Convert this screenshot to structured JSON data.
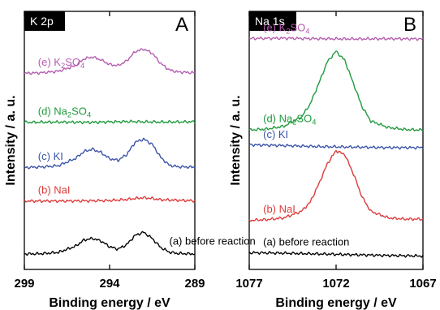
{
  "chart_data": [
    {
      "type": "line",
      "panel_tag": "K 2p",
      "panel_letter": "A",
      "xlabel": "Binding energy / eV",
      "ylabel": "Intensity / a. u.",
      "xlim": [
        299,
        289
      ],
      "x_reversed": true,
      "xticks": [
        299,
        294,
        289
      ],
      "grid": false,
      "series": [
        {
          "label": "(a) before reaction",
          "color": "#000000",
          "label_x": 290.5,
          "x": [
            299,
            298,
            297,
            296,
            295.5,
            295,
            294.5,
            294,
            293.5,
            293,
            292.5,
            292,
            291.5,
            291,
            290.5,
            290,
            289
          ],
          "y": [
            6.0,
            6.1,
            6.6,
            9.0,
            11.4,
            12.0,
            11.0,
            8.8,
            7.9,
            9.6,
            13.2,
            14.4,
            12.0,
            8.5,
            6.7,
            6.2,
            6.0
          ]
        },
        {
          "label": "(b) NaI",
          "color": "#dd3a3a",
          "label_x": 298.2,
          "x": [
            299,
            297,
            295,
            294,
            293.5,
            293,
            292.5,
            292,
            291.5,
            291,
            289
          ],
          "y": [
            26.5,
            26.5,
            26.6,
            26.7,
            26.9,
            27.1,
            27.5,
            27.8,
            27.5,
            27.0,
            26.6
          ]
        },
        {
          "label": "(c) KI",
          "color": "#3a52a8",
          "label_x": 298.2,
          "x": [
            299,
            298,
            297,
            296,
            295.5,
            295,
            294.5,
            294,
            293.5,
            293,
            292.5,
            292,
            291.5,
            291,
            290.5,
            290,
            289
          ],
          "y": [
            39.5,
            39.7,
            40.2,
            43.0,
            45.7,
            46.6,
            45.3,
            42.9,
            42.3,
            44.5,
            49.3,
            50.5,
            48.5,
            43.4,
            40.4,
            39.8,
            39.6
          ]
        },
        {
          "label": "(d) Na₂SO₄",
          "color": "#1f9a3c",
          "label_x": 298.2,
          "x": [
            299,
            297,
            295,
            293,
            291,
            289
          ],
          "y": [
            57.0,
            57.1,
            57.0,
            57.3,
            57.1,
            57.2
          ]
        },
        {
          "label": "(e) K₂SO₄",
          "color": "#b45bb0",
          "label_x": 298.2,
          "x": [
            299,
            298,
            297,
            296,
            295.5,
            295,
            294.5,
            294,
            293.5,
            293,
            292.5,
            292,
            291.5,
            291,
            290.5,
            290,
            289
          ],
          "y": [
            76.0,
            76.2,
            76.8,
            79.0,
            81.6,
            82.3,
            81.2,
            79.4,
            79.0,
            80.8,
            84.4,
            85.4,
            83.8,
            79.8,
            77.3,
            76.5,
            76.2
          ]
        }
      ]
    },
    {
      "type": "line",
      "panel_tag": "Na 1s",
      "panel_letter": "B",
      "xlabel": "Binding energy / eV",
      "ylabel": "Intensity / a. u.",
      "xlim": [
        1077,
        1067
      ],
      "x_reversed": true,
      "xticks": [
        1077,
        1072,
        1067
      ],
      "grid": false,
      "series": [
        {
          "label": "(a) before reaction",
          "color": "#000000",
          "label_x": 1076.2,
          "x": [
            1077,
            1075,
            1073,
            1071,
            1069,
            1067
          ],
          "y": [
            6.5,
            6.3,
            6.0,
            5.7,
            5.4,
            5.2
          ]
        },
        {
          "label": "(b) NaI",
          "color": "#dd3a3a",
          "label_x": 1076.2,
          "x": [
            1077,
            1076,
            1075,
            1074,
            1073.5,
            1073,
            1072.5,
            1072,
            1071.5,
            1071,
            1070.5,
            1070,
            1069,
            1068,
            1067
          ],
          "y": [
            19.0,
            19.3,
            20.0,
            22.5,
            26.0,
            33.0,
            41.0,
            46.0,
            44.5,
            37.0,
            28.0,
            22.5,
            20.0,
            19.5,
            19.5
          ]
        },
        {
          "label": "(c) KI",
          "color": "#3a52a8",
          "label_x": 1076.2,
          "x": [
            1077,
            1075,
            1073,
            1071,
            1069,
            1067
          ],
          "y": [
            48.3,
            48.0,
            47.6,
            47.4,
            47.2,
            47.2
          ]
        },
        {
          "label": "(d) Na₂SO₄",
          "color": "#1f9a3c",
          "label_x": 1076.2,
          "x": [
            1077,
            1076,
            1075,
            1074,
            1073.5,
            1073,
            1072.5,
            1072,
            1071.5,
            1071,
            1070.5,
            1070,
            1069,
            1068,
            1067
          ],
          "y": [
            54.0,
            54.4,
            55.5,
            59.0,
            64.0,
            72.0,
            80.5,
            84.5,
            81.0,
            72.0,
            63.0,
            57.5,
            55.0,
            54.2,
            54.0
          ]
        },
        {
          "label": "(e) K₂SO₄",
          "color": "#b45bb0",
          "label_x": 1076.2,
          "x": [
            1077,
            1075,
            1073,
            1071,
            1069,
            1067
          ],
          "y": [
            89.5,
            89.6,
            89.4,
            89.3,
            89.4,
            89.3
          ]
        }
      ]
    }
  ]
}
